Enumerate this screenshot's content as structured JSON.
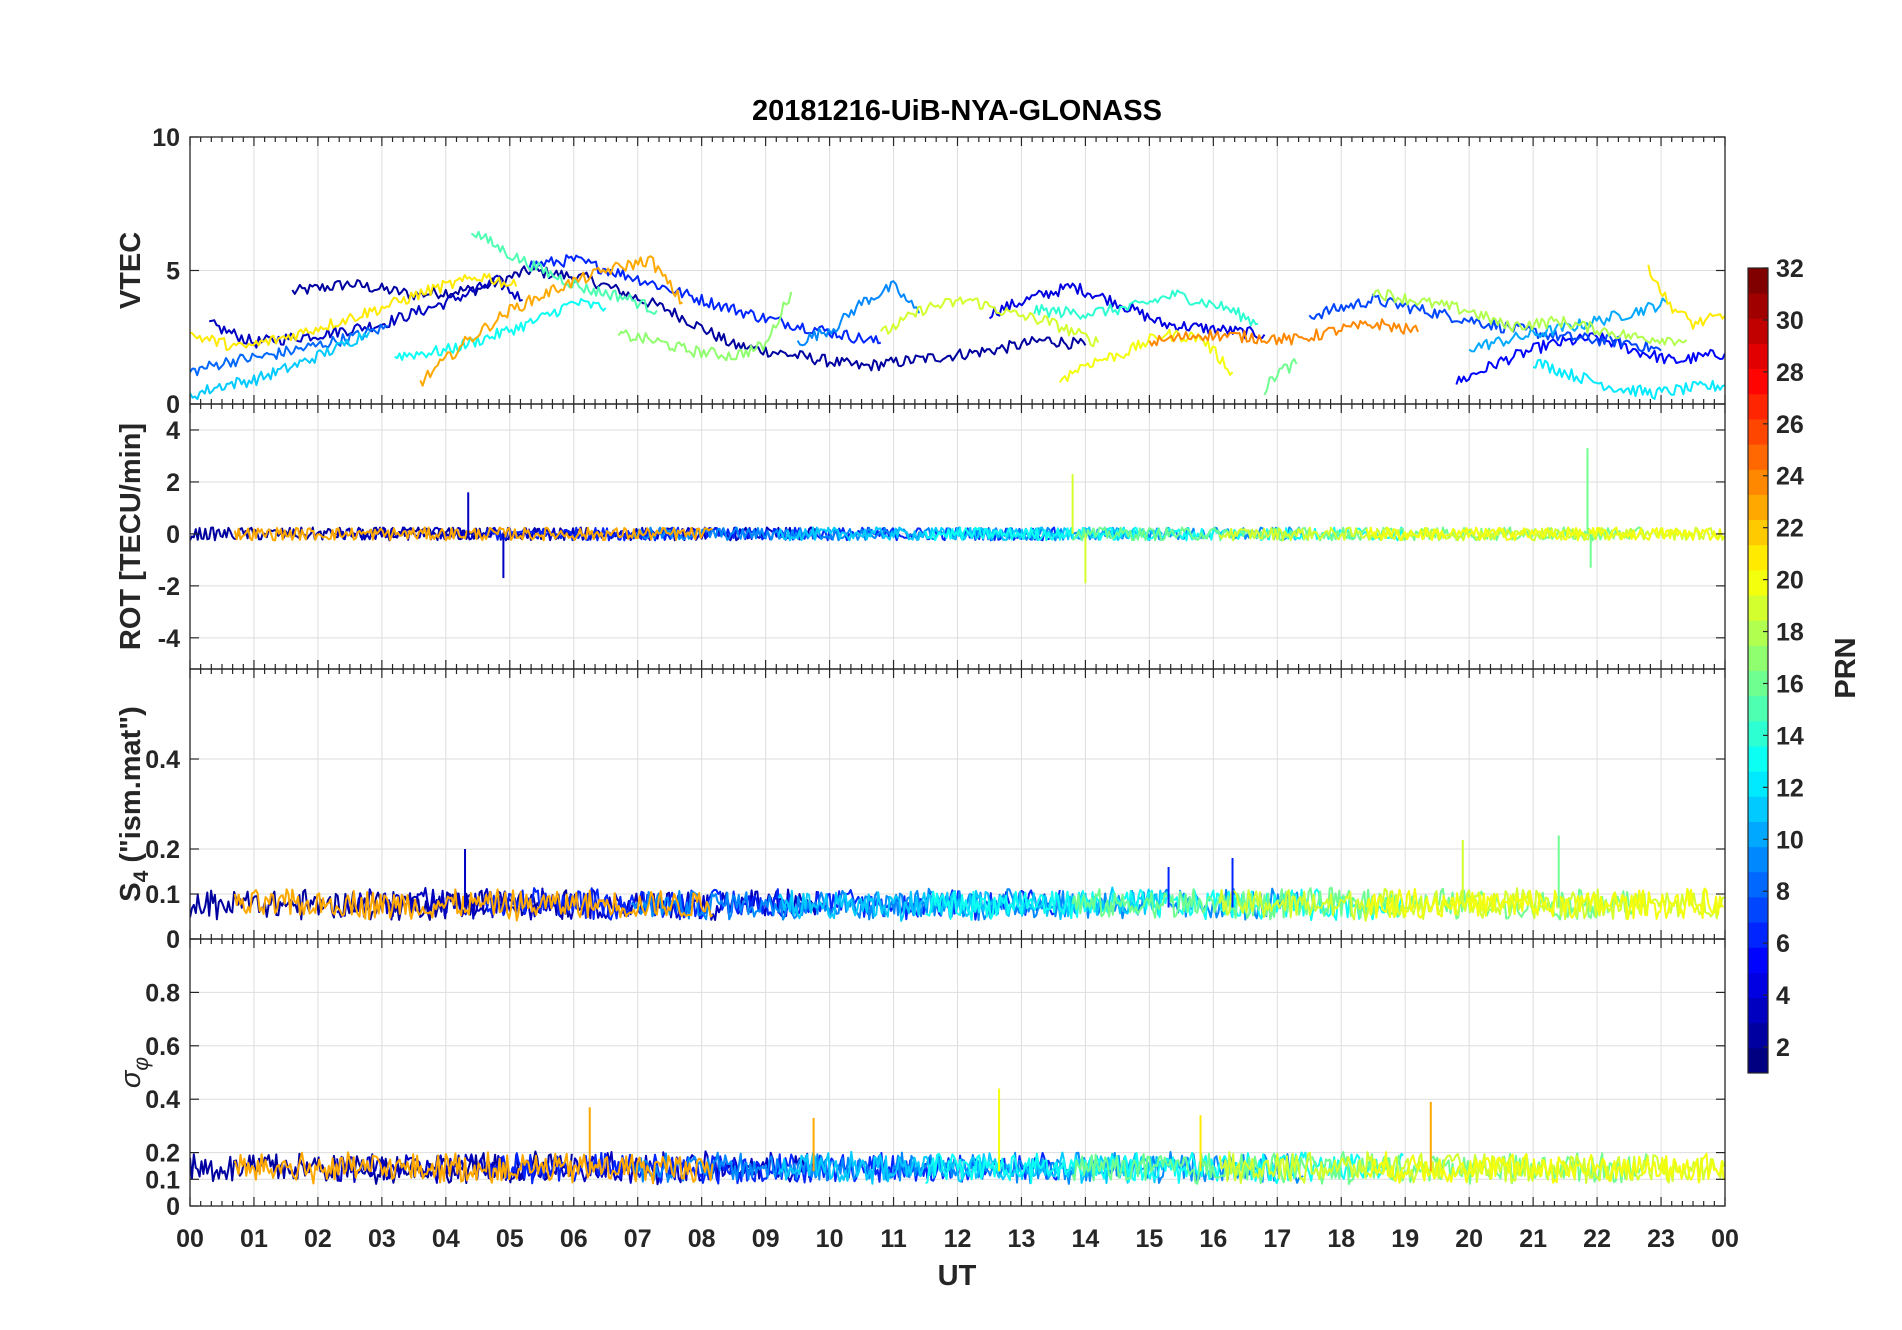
{
  "chart_data": {
    "title": "20181216-UiB-NYA-GLONASS",
    "type": "line",
    "xlabel": "UT",
    "xlim": [
      0,
      24
    ],
    "x_tick_labels": [
      "00",
      "01",
      "02",
      "03",
      "04",
      "05",
      "06",
      "07",
      "08",
      "09",
      "10",
      "11",
      "12",
      "13",
      "14",
      "15",
      "16",
      "17",
      "18",
      "19",
      "20",
      "21",
      "22",
      "23",
      "00"
    ],
    "grid": true,
    "legend": "none (series colored by PRN colorbar)",
    "colorbar": {
      "label": "PRN",
      "range": [
        1,
        32
      ],
      "ticks": [
        "2",
        "4",
        "6",
        "8",
        "10",
        "12",
        "14",
        "16",
        "18",
        "20",
        "22",
        "24",
        "26",
        "28",
        "30",
        "32"
      ],
      "colormap": "jet",
      "placement": "right"
    },
    "panels": [
      {
        "id": "vtec",
        "ylabel": "VTEC",
        "ylim": [
          0,
          10
        ],
        "y_ticks": [
          0,
          5,
          10
        ],
        "y_tick_labels": [
          "0",
          "5",
          "10"
        ],
        "series": [
          {
            "prn": 2,
            "x": [
              1.6,
              2.5,
              3.5,
              4.5,
              5.3,
              6.2,
              7.5,
              8.5,
              9.5,
              10.5,
              11.5,
              12.5,
              13.4,
              14.0
            ],
            "y": [
              4.2,
              4.5,
              4.1,
              4.3,
              5.0,
              4.7,
              3.5,
              2.2,
              1.8,
              1.4,
              1.7,
              2.0,
              2.4,
              2.2
            ]
          },
          {
            "prn": 3,
            "x": [
              0.3,
              1.0,
              2.0,
              3.0,
              4.0,
              4.8,
              5.2
            ],
            "y": [
              3.0,
              2.3,
              2.6,
              3.0,
              3.8,
              4.6,
              3.9
            ]
          },
          {
            "prn": 4,
            "x": [
              12.5,
              13.2,
              13.8,
              14.5,
              15.2,
              16.0,
              16.8
            ],
            "y": [
              3.4,
              4.0,
              4.4,
              3.8,
              3.0,
              2.8,
              2.6
            ]
          },
          {
            "prn": 5,
            "x": [
              19.8,
              20.5,
              21.2,
              22.0,
              22.6,
              23.2,
              24.0
            ],
            "y": [
              0.8,
              1.6,
              2.2,
              2.5,
              2.0,
              1.6,
              1.9
            ]
          },
          {
            "prn": 6,
            "x": [
              5.3,
              6.0,
              7.0,
              8.0,
              9.0,
              10.0,
              10.8
            ],
            "y": [
              5.2,
              5.4,
              4.7,
              3.9,
              3.2,
              2.7,
              2.3
            ]
          },
          {
            "prn": 7,
            "x": [
              17.5,
              18.5,
              19.5,
              20.5,
              21.5,
              22.5,
              23.0
            ],
            "y": [
              3.3,
              3.9,
              3.4,
              2.9,
              2.5,
              2.3,
              2.0
            ]
          },
          {
            "prn": 8,
            "x": [
              0.0,
              0.6,
              1.2,
              2.0,
              2.7,
              3.1
            ],
            "y": [
              1.2,
              1.6,
              1.8,
              2.2,
              2.6,
              2.9
            ]
          },
          {
            "prn": 9,
            "x": [
              9.5,
              10.1,
              10.5,
              11.0,
              11.4
            ],
            "y": [
              2.3,
              2.9,
              3.8,
              4.4,
              3.4
            ]
          },
          {
            "prn": 10,
            "x": [
              20.0,
              21.0,
              21.8,
              22.5,
              23.1
            ],
            "y": [
              2.1,
              2.6,
              3.0,
              3.4,
              3.8
            ]
          },
          {
            "prn": 11,
            "x": [
              0.0,
              0.5,
              1.0,
              1.6,
              2.3,
              2.8
            ],
            "y": [
              0.3,
              0.7,
              0.9,
              1.4,
              2.1,
              2.7
            ]
          },
          {
            "prn": 12,
            "x": [
              21.0,
              21.6,
              22.3,
              22.9,
              23.5,
              24.0
            ],
            "y": [
              1.6,
              1.1,
              0.6,
              0.4,
              0.6,
              0.7
            ]
          },
          {
            "prn": 13,
            "x": [
              3.2,
              4.0,
              4.8,
              5.4,
              6.0,
              6.5
            ],
            "y": [
              1.8,
              2.0,
              2.6,
              3.1,
              3.8,
              3.6
            ]
          },
          {
            "prn": 14,
            "x": [
              13.2,
              14.0,
              14.7,
              15.4,
              16.2,
              16.7
            ],
            "y": [
              3.5,
              3.4,
              3.6,
              4.1,
              3.6,
              3.0
            ]
          },
          {
            "prn": 15,
            "x": [
              4.4,
              5.0,
              5.6,
              6.2,
              6.8,
              7.3
            ],
            "y": [
              6.5,
              5.6,
              4.9,
              4.3,
              4.0,
              3.5
            ]
          },
          {
            "prn": 16,
            "x": [
              16.8,
              17.0,
              17.3
            ],
            "y": [
              0.5,
              1.2,
              1.5
            ]
          },
          {
            "prn": 17,
            "x": [
              6.7,
              7.2,
              7.8,
              8.5,
              9.0,
              9.4
            ],
            "y": [
              2.6,
              2.4,
              2.0,
              1.8,
              2.2,
              4.2
            ]
          },
          {
            "prn": 18,
            "x": [
              18.5,
              19.3,
              20.0,
              20.6,
              21.4,
              22.0,
              22.6,
              23.4
            ],
            "y": [
              4.2,
              3.8,
              3.5,
              2.9,
              3.1,
              2.8,
              2.5,
              2.4
            ]
          },
          {
            "prn": 19,
            "x": [
              10.8,
              11.5,
              12.2,
              12.8,
              13.4,
              14.2
            ],
            "y": [
              2.6,
              3.6,
              3.9,
              3.4,
              3.1,
              2.3
            ]
          },
          {
            "prn": 20,
            "x": [
              13.6,
              14.0,
              14.6,
              15.2,
              15.8,
              16.3
            ],
            "y": [
              0.9,
              1.5,
              1.9,
              2.6,
              2.5,
              1.2
            ]
          },
          {
            "prn": 21,
            "x": [
              0.0,
              0.8,
              1.5,
              2.2,
              3.0,
              3.8,
              4.6,
              5.1
            ],
            "y": [
              2.6,
              2.1,
              2.5,
              3.0,
              3.6,
              4.3,
              4.8,
              4.4
            ]
          },
          {
            "prn": 21,
            "x": [
              22.8,
              23.1,
              23.5,
              24.0
            ],
            "y": [
              5.2,
              3.8,
              3.0,
              3.3
            ]
          },
          {
            "prn": 23,
            "x": [
              3.6,
              4.3,
              5.0,
              5.8,
              6.5,
              7.2,
              7.7
            ],
            "y": [
              0.8,
              2.3,
              3.5,
              4.4,
              5.0,
              5.4,
              3.8
            ]
          },
          {
            "prn": 24,
            "x": [
              15.0,
              15.8,
              16.6,
              17.3,
              18.0,
              18.6,
              19.2
            ],
            "y": [
              2.3,
              2.6,
              2.5,
              2.4,
              2.8,
              3.0,
              2.7
            ]
          }
        ]
      },
      {
        "id": "rot",
        "ylabel": "ROT [TECU/min]",
        "ylim": [
          -5.2,
          5
        ],
        "y_ticks": [
          -4,
          -2,
          0,
          2,
          4
        ],
        "y_tick_labels": [
          "-4",
          "-2",
          "0",
          "2",
          "4"
        ],
        "series_note": "ROT scatters about 0 for all PRNs; peak excursions listed",
        "peaks": [
          {
            "x": 4.35,
            "y": 1.6,
            "prn": 3
          },
          {
            "x": 4.9,
            "y": -1.7,
            "prn": 3
          },
          {
            "x": 13.8,
            "y": 2.3,
            "prn": 19
          },
          {
            "x": 14.0,
            "y": -1.9,
            "prn": 19
          },
          {
            "x": 21.85,
            "y": 3.3,
            "prn": 16
          },
          {
            "x": 21.9,
            "y": -1.3,
            "prn": 16
          }
        ]
      },
      {
        "id": "s4",
        "ylabel": "S4 (\"ism.mat\")",
        "ylabel_main": "S",
        "ylabel_sub": "4",
        "ylabel_rest": " (\"ism.mat\")",
        "ylim": [
          0,
          0.6
        ],
        "y_ticks": [
          0,
          0.1,
          0.2,
          0.4
        ],
        "y_tick_labels": [
          "0",
          "0.1",
          "0.2",
          "0.4"
        ],
        "series_note": "S4 values mostly between 0.04 and 0.12; peak values listed",
        "peaks": [
          {
            "x": 4.3,
            "y": 0.2,
            "prn": 3
          },
          {
            "x": 15.3,
            "y": 0.16,
            "prn": 6
          },
          {
            "x": 16.3,
            "y": 0.18,
            "prn": 6
          },
          {
            "x": 19.9,
            "y": 0.22,
            "prn": 19
          },
          {
            "x": 21.4,
            "y": 0.23,
            "prn": 16
          }
        ]
      },
      {
        "id": "sigma_phi",
        "ylabel": "σ φ",
        "ylabel_main": "σ",
        "ylabel_sub": "φ",
        "ylim": [
          0,
          1
        ],
        "y_ticks": [
          0,
          0.1,
          0.2,
          0.4,
          0.6,
          0.8
        ],
        "y_tick_labels": [
          "0",
          "0.1",
          "0.2",
          "0.4",
          "0.6",
          "0.8"
        ],
        "series_note": "σφ values mostly between 0.08 and 0.3; peak values listed",
        "peaks": [
          {
            "x": 6.25,
            "y": 0.37,
            "prn": 23
          },
          {
            "x": 9.75,
            "y": 0.33,
            "prn": 23
          },
          {
            "x": 12.65,
            "y": 0.44,
            "prn": 20
          },
          {
            "x": 15.8,
            "y": 0.34,
            "prn": 21
          },
          {
            "x": 19.4,
            "y": 0.39,
            "prn": 23
          }
        ]
      }
    ]
  }
}
